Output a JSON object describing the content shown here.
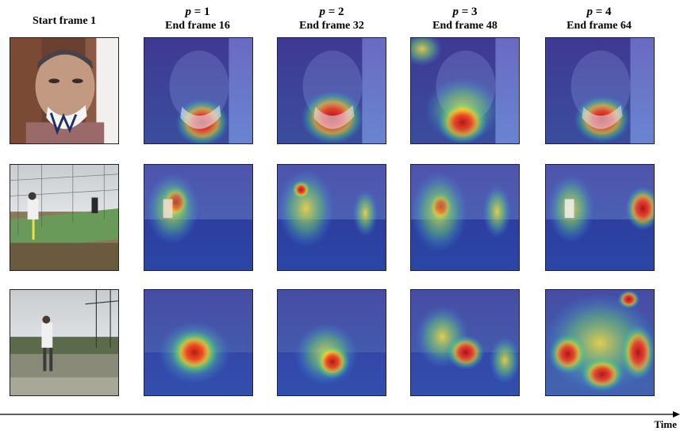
{
  "columns": [
    {
      "start_label": "Start frame 1"
    },
    {
      "p_symbol": "p",
      "p_eq": "= 1",
      "frame_label": "End frame 16"
    },
    {
      "p_symbol": "p",
      "p_eq": "= 2",
      "frame_label": "End frame 32"
    },
    {
      "p_symbol": "p",
      "p_eq": "= 3",
      "frame_label": "End frame 48"
    },
    {
      "p_symbol": "p",
      "p_eq": "= 4",
      "frame_label": "End frame 64"
    }
  ],
  "rows": [
    {
      "scene": "face-mask"
    },
    {
      "scene": "batting-cage"
    },
    {
      "scene": "hammer-throw"
    }
  ],
  "axis": {
    "label": "Time"
  }
}
